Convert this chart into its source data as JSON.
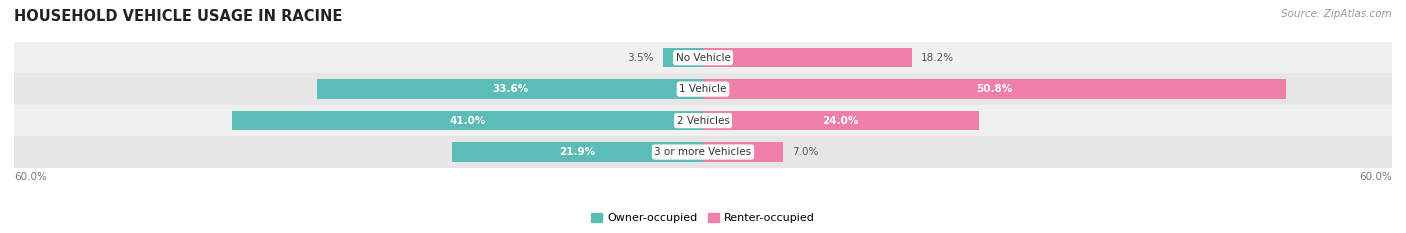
{
  "title": "HOUSEHOLD VEHICLE USAGE IN RACINE",
  "source": "Source: ZipAtlas.com",
  "categories": [
    "No Vehicle",
    "1 Vehicle",
    "2 Vehicles",
    "3 or more Vehicles"
  ],
  "owner_values": [
    3.5,
    33.6,
    41.0,
    21.9
  ],
  "renter_values": [
    18.2,
    50.8,
    24.0,
    7.0
  ],
  "owner_color": "#5bbcb8",
  "renter_color": "#f080a8",
  "row_bg_colors": [
    "#f0f0f0",
    "#e6e6e6"
  ],
  "axis_max": 60.0,
  "legend_owner": "Owner-occupied",
  "legend_renter": "Renter-occupied",
  "axis_label_left": "60.0%",
  "axis_label_right": "60.0%",
  "title_fontsize": 10.5,
  "source_fontsize": 7.5,
  "label_fontsize": 7.5,
  "category_fontsize": 7.5,
  "axis_tick_fontsize": 7.5
}
